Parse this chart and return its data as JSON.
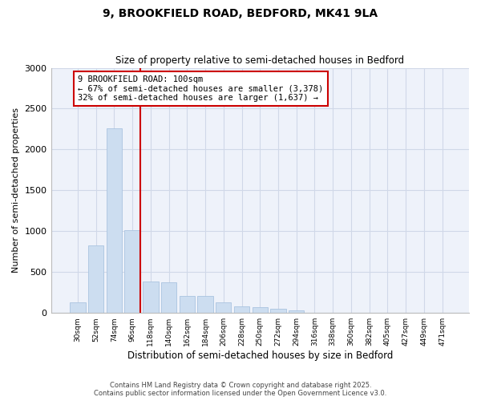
{
  "title_line1": "9, BROOKFIELD ROAD, BEDFORD, MK41 9LA",
  "title_line2": "Size of property relative to semi-detached houses in Bedford",
  "xlabel": "Distribution of semi-detached houses by size in Bedford",
  "ylabel": "Number of semi-detached properties",
  "categories": [
    "30sqm",
    "52sqm",
    "74sqm",
    "96sqm",
    "118sqm",
    "140sqm",
    "162sqm",
    "184sqm",
    "206sqm",
    "228sqm",
    "250sqm",
    "272sqm",
    "294sqm",
    "316sqm",
    "338sqm",
    "360sqm",
    "382sqm",
    "405sqm",
    "427sqm",
    "449sqm",
    "471sqm"
  ],
  "values": [
    130,
    830,
    2260,
    1010,
    380,
    375,
    210,
    210,
    130,
    80,
    70,
    55,
    30,
    5,
    4,
    2,
    1,
    1,
    0,
    0,
    0
  ],
  "bar_color": "#ccddf0",
  "bar_edge_color": "#aac4e0",
  "property_bin_index": 3,
  "property_label": "9 BROOKFIELD ROAD: 100sqm",
  "pct_smaller": 67,
  "count_smaller": 3378,
  "pct_larger": 32,
  "count_larger": 1637,
  "annotation_box_color": "#cc0000",
  "vline_color": "#cc0000",
  "grid_color": "#d0d8e8",
  "bg_color": "#eef2fa",
  "footer_line1": "Contains HM Land Registry data © Crown copyright and database right 2025.",
  "footer_line2": "Contains public sector information licensed under the Open Government Licence v3.0.",
  "ylim": [
    0,
    3000
  ],
  "yticks": [
    0,
    500,
    1000,
    1500,
    2000,
    2500,
    3000
  ]
}
